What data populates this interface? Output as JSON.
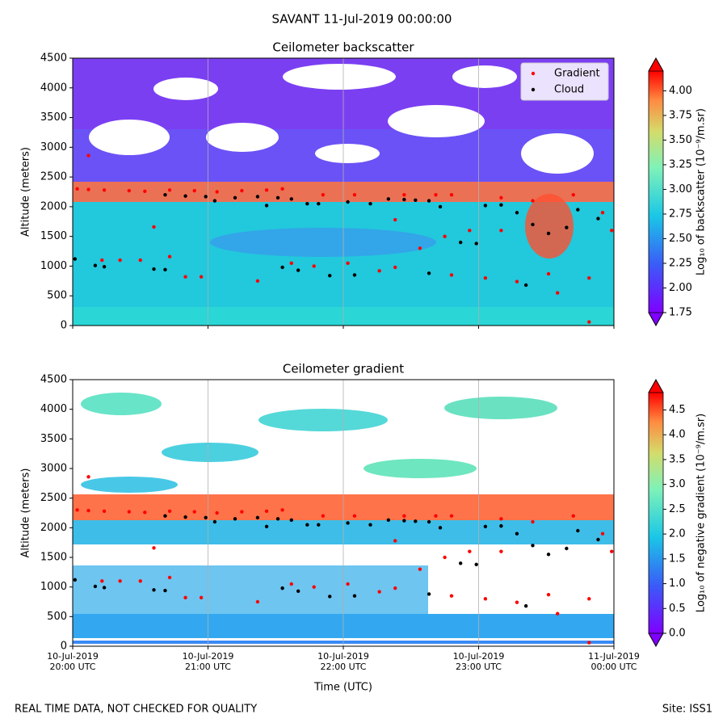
{
  "title": "SAVANT 11-Jul-2019 00:00:00",
  "footer_left": "REAL TIME DATA, NOT CHECKED FOR QUALITY",
  "footer_right": "Site: ISS1",
  "chart_data": [
    {
      "type": "scatter",
      "title": "Ceilometer backscatter",
      "y_label": "Altitude (meters)",
      "legend": "upper right",
      "xlim": [
        "2019-07-10T20:00",
        "2019-07-11T00:00"
      ],
      "xticks": [
        "2019-07-10T20:00",
        "2019-07-10T21:00",
        "2019-07-10T22:00",
        "2019-07-10T23:00",
        "2019-07-11T00:00"
      ],
      "show_xtick_labels": false,
      "grid": "x",
      "ylim": [
        0,
        4500
      ],
      "yticks": [
        0,
        500,
        1000,
        1500,
        2000,
        2500,
        3000,
        3500,
        4000,
        4500
      ],
      "colorbar": {
        "label": "Log₁₀ of backscatter (10⁻⁹/m.sr)",
        "lim": [
          1.75,
          4.2
        ],
        "ticks": [
          {
            "value": 1.75,
            "label": "1.75"
          },
          {
            "value": 2,
            "label": "2.00"
          },
          {
            "value": 2.25,
            "label": "2.25"
          },
          {
            "value": 2.5,
            "label": "2.50"
          },
          {
            "value": 2.75,
            "label": "2.75"
          },
          {
            "value": 3,
            "label": "3.00"
          },
          {
            "value": 3.25,
            "label": "3.25"
          },
          {
            "value": 3.5,
            "label": "3.50"
          },
          {
            "value": 3.75,
            "label": "3.75"
          },
          {
            "value": 4,
            "label": "4.00"
          }
        ]
      },
      "series": [
        {
          "name": "Gradient",
          "color": "#ff0000",
          "x": [
            "2019-07-10T20:02",
            "2019-07-10T20:07",
            "2019-07-10T20:07",
            "2019-07-10T20:13",
            "2019-07-10T20:14",
            "2019-07-10T20:21",
            "2019-07-10T20:25",
            "2019-07-10T20:30",
            "2019-07-10T20:32",
            "2019-07-10T20:36",
            "2019-07-10T20:43",
            "2019-07-10T20:43",
            "2019-07-10T20:50",
            "2019-07-10T20:54",
            "2019-07-10T20:57",
            "2019-07-10T21:04",
            "2019-07-10T21:15",
            "2019-07-10T21:22",
            "2019-07-10T21:26",
            "2019-07-10T21:33",
            "2019-07-10T21:37",
            "2019-07-10T21:47",
            "2019-07-10T21:51",
            "2019-07-10T22:02",
            "2019-07-10T22:05",
            "2019-07-10T22:16",
            "2019-07-10T22:23",
            "2019-07-10T22:23",
            "2019-07-10T22:27",
            "2019-07-10T22:34",
            "2019-07-10T22:41",
            "2019-07-10T22:45",
            "2019-07-10T22:48",
            "2019-07-10T22:48",
            "2019-07-10T22:56",
            "2019-07-10T23:03",
            "2019-07-10T23:10",
            "2019-07-10T23:10",
            "2019-07-10T23:17",
            "2019-07-10T23:24",
            "2019-07-10T23:31",
            "2019-07-10T23:35",
            "2019-07-10T23:42",
            "2019-07-10T23:49",
            "2019-07-10T23:49",
            "2019-07-10T23:55",
            "2019-07-10T23:59"
          ],
          "values": [
            2300,
            2860,
            2290,
            1100,
            2280,
            1100,
            2270,
            1100,
            2260,
            1660,
            1160,
            2280,
            820,
            2270,
            820,
            2250,
            2270,
            750,
            2280,
            2300,
            1050,
            1000,
            2200,
            1050,
            2200,
            920,
            980,
            1780,
            2200,
            1300,
            2200,
            1500,
            2200,
            850,
            1600,
            800,
            1600,
            2150,
            740,
            2100,
            870,
            550,
            2200,
            800,
            60,
            1900,
            1600
          ]
        },
        {
          "name": "Cloud",
          "color": "#000000",
          "x": [
            "2019-07-10T20:01",
            "2019-07-10T20:10",
            "2019-07-10T20:14",
            "2019-07-10T20:36",
            "2019-07-10T20:41",
            "2019-07-10T20:41",
            "2019-07-10T20:50",
            "2019-07-10T20:59",
            "2019-07-10T21:03",
            "2019-07-10T21:12",
            "2019-07-10T21:22",
            "2019-07-10T21:26",
            "2019-07-10T21:31",
            "2019-07-10T21:33",
            "2019-07-10T21:37",
            "2019-07-10T21:40",
            "2019-07-10T21:44",
            "2019-07-10T21:49",
            "2019-07-10T21:54",
            "2019-07-10T22:02",
            "2019-07-10T22:05",
            "2019-07-10T22:12",
            "2019-07-10T22:20",
            "2019-07-10T22:27",
            "2019-07-10T22:32",
            "2019-07-10T22:38",
            "2019-07-10T22:38",
            "2019-07-10T22:43",
            "2019-07-10T22:52",
            "2019-07-10T22:59",
            "2019-07-10T23:03",
            "2019-07-10T23:10",
            "2019-07-10T23:17",
            "2019-07-10T23:21",
            "2019-07-10T23:24",
            "2019-07-10T23:31",
            "2019-07-10T23:39",
            "2019-07-10T23:44",
            "2019-07-10T23:53"
          ],
          "values": [
            1120,
            1010,
            990,
            950,
            940,
            2200,
            2180,
            2170,
            2100,
            2150,
            2170,
            2020,
            2150,
            980,
            2130,
            930,
            2050,
            2050,
            840,
            2080,
            850,
            2050,
            2130,
            2120,
            2110,
            2100,
            880,
            2000,
            1400,
            1380,
            2020,
            2030,
            1900,
            680,
            1700,
            1550,
            1650,
            1950,
            1800
          ]
        }
      ]
    },
    {
      "type": "scatter",
      "title": "Ceilometer gradient",
      "y_label": "Altitude (meters)",
      "x_label": "Time (UTC)",
      "xlim": [
        "2019-07-10T20:00",
        "2019-07-11T00:00"
      ],
      "xticks": [
        {
          "value": "2019-07-10T20:00",
          "label": [
            "10-Jul-2019",
            "20:00 UTC"
          ]
        },
        {
          "value": "2019-07-10T21:00",
          "label": [
            "10-Jul-2019",
            "21:00 UTC"
          ]
        },
        {
          "value": "2019-07-10T22:00",
          "label": [
            "10-Jul-2019",
            "22:00 UTC"
          ]
        },
        {
          "value": "2019-07-10T23:00",
          "label": [
            "10-Jul-2019",
            "23:00 UTC"
          ]
        },
        {
          "value": "2019-07-11T00:00",
          "label": [
            "11-Jul-2019",
            "00:00 UTC"
          ]
        }
      ],
      "show_xtick_labels": true,
      "grid": "x",
      "ylim": [
        0,
        4500
      ],
      "yticks": [
        0,
        500,
        1000,
        1500,
        2000,
        2500,
        3000,
        3500,
        4000,
        4500
      ],
      "colorbar": {
        "label": "Log₁₀ of negative gradient (10⁻⁹/m.sr)",
        "lim": [
          0,
          4.85
        ],
        "ticks": [
          {
            "value": 0,
            "label": "0.0"
          },
          {
            "value": 0.5,
            "label": "0.5"
          },
          {
            "value": 1,
            "label": "1.0"
          },
          {
            "value": 1.5,
            "label": "1.5"
          },
          {
            "value": 2,
            "label": "2.0"
          },
          {
            "value": 2.5,
            "label": "2.5"
          },
          {
            "value": 3,
            "label": "3.0"
          },
          {
            "value": 3.5,
            "label": "3.5"
          },
          {
            "value": 4,
            "label": "4.0"
          },
          {
            "value": 4.5,
            "label": "4.5"
          }
        ]
      },
      "series": [
        {
          "name": "Gradient",
          "color": "#ff0000",
          "x": [
            "2019-07-10T20:02",
            "2019-07-10T20:07",
            "2019-07-10T20:07",
            "2019-07-10T20:13",
            "2019-07-10T20:14",
            "2019-07-10T20:21",
            "2019-07-10T20:25",
            "2019-07-10T20:30",
            "2019-07-10T20:32",
            "2019-07-10T20:36",
            "2019-07-10T20:43",
            "2019-07-10T20:43",
            "2019-07-10T20:50",
            "2019-07-10T20:54",
            "2019-07-10T20:57",
            "2019-07-10T21:04",
            "2019-07-10T21:15",
            "2019-07-10T21:22",
            "2019-07-10T21:26",
            "2019-07-10T21:33",
            "2019-07-10T21:37",
            "2019-07-10T21:47",
            "2019-07-10T21:51",
            "2019-07-10T22:02",
            "2019-07-10T22:05",
            "2019-07-10T22:16",
            "2019-07-10T22:23",
            "2019-07-10T22:23",
            "2019-07-10T22:27",
            "2019-07-10T22:34",
            "2019-07-10T22:41",
            "2019-07-10T22:45",
            "2019-07-10T22:48",
            "2019-07-10T22:48",
            "2019-07-10T22:56",
            "2019-07-10T23:03",
            "2019-07-10T23:10",
            "2019-07-10T23:10",
            "2019-07-10T23:17",
            "2019-07-10T23:24",
            "2019-07-10T23:31",
            "2019-07-10T23:35",
            "2019-07-10T23:42",
            "2019-07-10T23:49",
            "2019-07-10T23:49",
            "2019-07-10T23:55",
            "2019-07-10T23:59"
          ],
          "values": [
            2300,
            2860,
            2290,
            1100,
            2280,
            1100,
            2270,
            1100,
            2260,
            1660,
            1160,
            2280,
            820,
            2270,
            820,
            2250,
            2270,
            750,
            2280,
            2300,
            1050,
            1000,
            2200,
            1050,
            2200,
            920,
            980,
            1780,
            2200,
            1300,
            2200,
            1500,
            2200,
            850,
            1600,
            800,
            1600,
            2150,
            740,
            2100,
            870,
            550,
            2200,
            800,
            60,
            1900,
            1600
          ]
        },
        {
          "name": "Cloud",
          "color": "#000000",
          "x": [
            "2019-07-10T20:01",
            "2019-07-10T20:10",
            "2019-07-10T20:14",
            "2019-07-10T20:36",
            "2019-07-10T20:41",
            "2019-07-10T20:41",
            "2019-07-10T20:50",
            "2019-07-10T20:59",
            "2019-07-10T21:03",
            "2019-07-10T21:12",
            "2019-07-10T21:22",
            "2019-07-10T21:26",
            "2019-07-10T21:31",
            "2019-07-10T21:33",
            "2019-07-10T21:37",
            "2019-07-10T21:40",
            "2019-07-10T21:44",
            "2019-07-10T21:49",
            "2019-07-10T21:54",
            "2019-07-10T22:02",
            "2019-07-10T22:05",
            "2019-07-10T22:12",
            "2019-07-10T22:20",
            "2019-07-10T22:27",
            "2019-07-10T22:32",
            "2019-07-10T22:38",
            "2019-07-10T22:38",
            "2019-07-10T22:43",
            "2019-07-10T22:52",
            "2019-07-10T22:59",
            "2019-07-10T23:03",
            "2019-07-10T23:10",
            "2019-07-10T23:17",
            "2019-07-10T23:21",
            "2019-07-10T23:24",
            "2019-07-10T23:31",
            "2019-07-10T23:39",
            "2019-07-10T23:44",
            "2019-07-10T23:53"
          ],
          "values": [
            1120,
            1010,
            990,
            950,
            940,
            2200,
            2180,
            2170,
            2100,
            2150,
            2170,
            2020,
            2150,
            980,
            2130,
            930,
            2050,
            2050,
            840,
            2080,
            850,
            2050,
            2130,
            2120,
            2110,
            2100,
            880,
            2000,
            1400,
            1380,
            2020,
            2030,
            1900,
            680,
            1700,
            1550,
            1650,
            1950,
            1800
          ]
        }
      ]
    }
  ]
}
